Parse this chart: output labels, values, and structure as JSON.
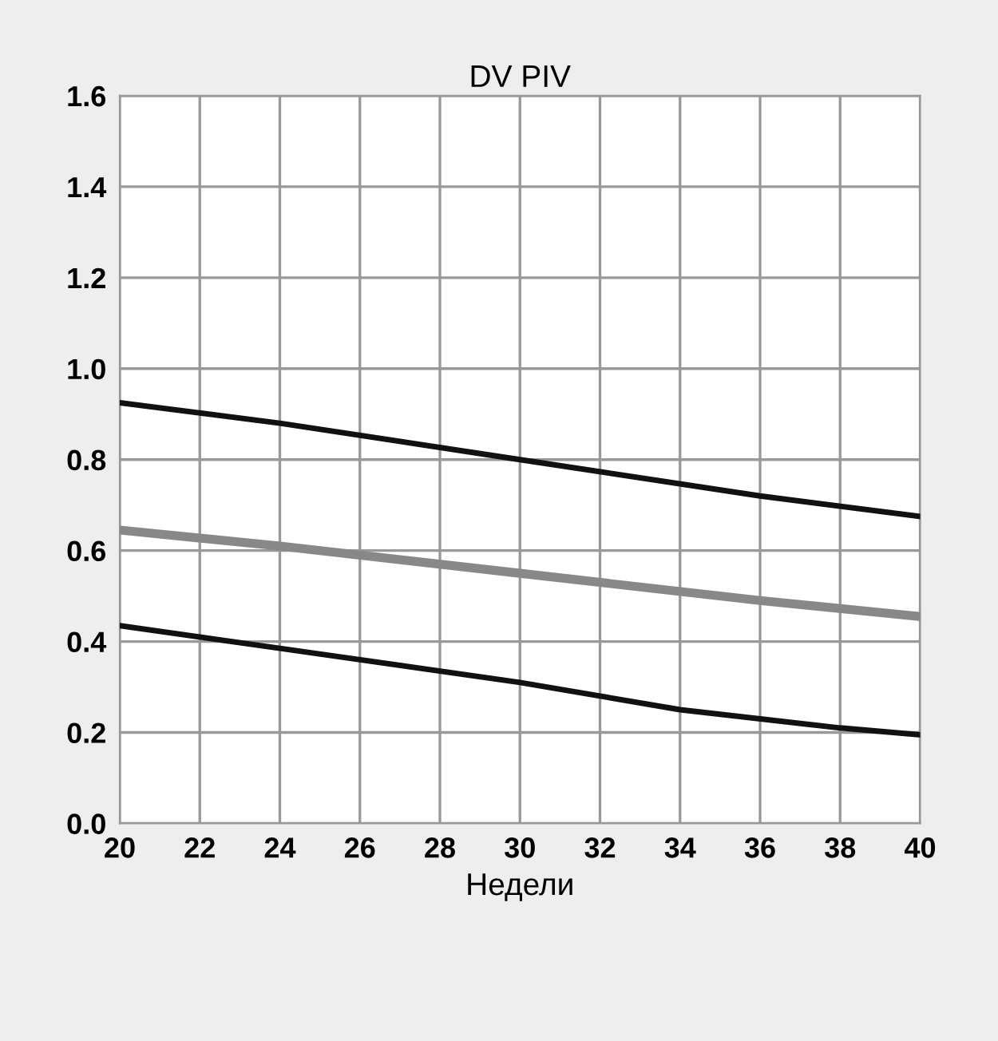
{
  "chart_data": {
    "type": "line",
    "title": "DV PIV",
    "xlabel": "Недели",
    "xlim": [
      20,
      40
    ],
    "xticks": [
      20,
      22,
      24,
      26,
      28,
      30,
      32,
      34,
      36,
      38,
      40
    ],
    "ylim": [
      0,
      1.6
    ],
    "yticks": [
      {
        "value": 0,
        "label": "0.0"
      },
      {
        "value": 0.2,
        "label": "0.2"
      },
      {
        "value": 0.4,
        "label": "0.4"
      },
      {
        "value": 0.6,
        "label": "0.6"
      },
      {
        "value": 0.8,
        "label": "0.8"
      },
      {
        "value": 1.0,
        "label": "1.0"
      },
      {
        "value": 1.2,
        "label": "1.2"
      },
      {
        "value": 1.4,
        "label": "1.4"
      },
      {
        "value": 1.6,
        "label": "1.6"
      }
    ],
    "grid": true,
    "marker": "none",
    "line_style": "solid",
    "series": [
      {
        "color": "#111111",
        "x": [
          20,
          24,
          30,
          36,
          40
        ],
        "values": [
          0.925,
          0.88,
          0.8,
          0.72,
          0.675
        ]
      },
      {
        "color": "#888888",
        "x": [
          20,
          24,
          30,
          36,
          40
        ],
        "values": [
          0.645,
          0.61,
          0.55,
          0.49,
          0.455
        ]
      },
      {
        "color": "#111111",
        "x": [
          20,
          24,
          30,
          34,
          38,
          40
        ],
        "values": [
          0.435,
          0.385,
          0.31,
          0.25,
          0.21,
          0.195
        ]
      }
    ]
  }
}
